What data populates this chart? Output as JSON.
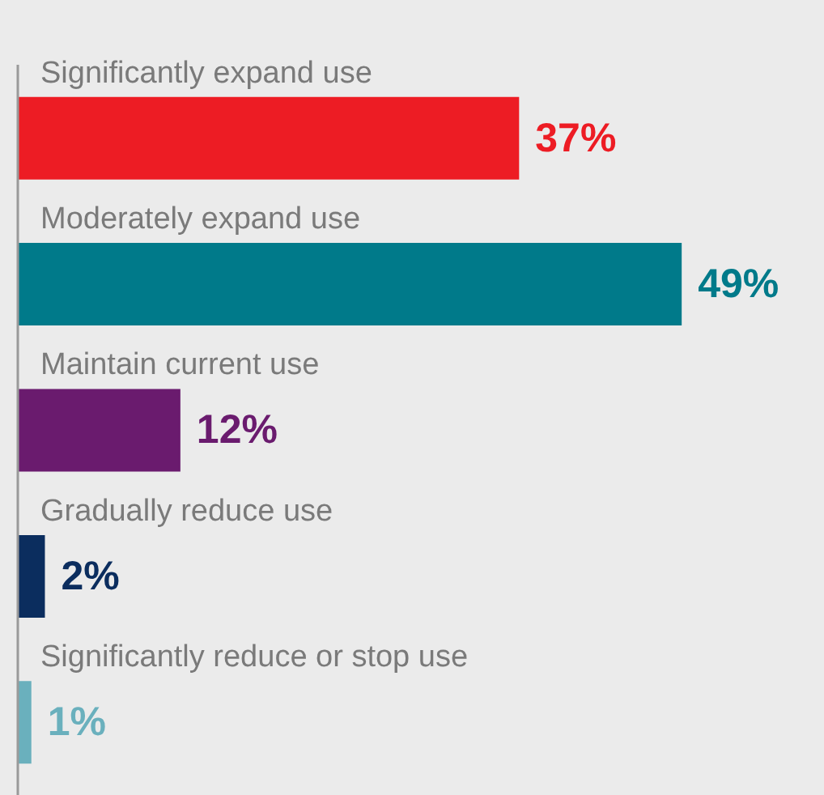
{
  "chart_data": {
    "type": "bar",
    "orientation": "horizontal",
    "categories": [
      "Significantly expand use",
      "Moderately expand use",
      "Maintain current use",
      "Gradually reduce use",
      "Significantly reduce or stop use"
    ],
    "values": [
      37,
      49,
      12,
      2,
      1
    ],
    "value_labels": [
      "37%",
      "49%",
      "12%",
      "2%",
      "1%"
    ],
    "colors": [
      "#ed1c24",
      "#007a8a",
      "#6a1b6e",
      "#0b2d5e",
      "#6ab0bd"
    ]
  }
}
